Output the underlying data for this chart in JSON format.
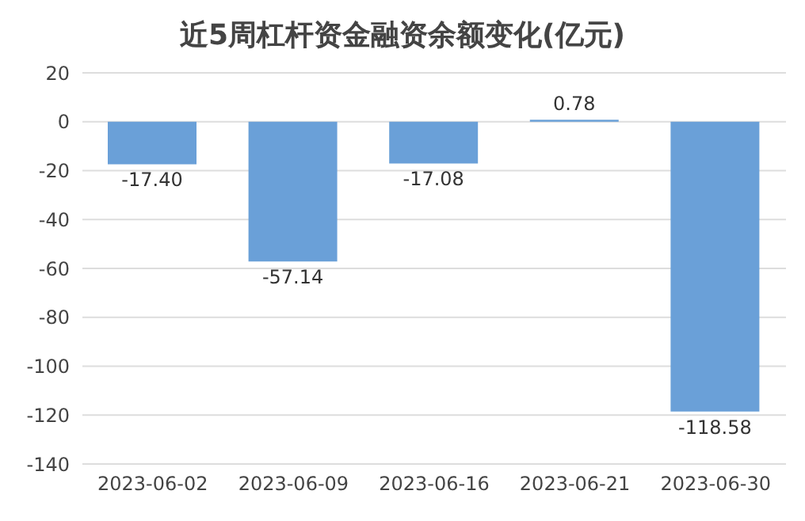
{
  "chart_data": {
    "type": "bar",
    "title": "近5周杠杆资金融资余额变化(亿元)",
    "categories": [
      "2023-06-02",
      "2023-06-09",
      "2023-06-16",
      "2023-06-21",
      "2023-06-30"
    ],
    "values": [
      -17.4,
      -57.14,
      -17.08,
      0.78,
      -118.58
    ],
    "value_labels": [
      "-17.40",
      "-57.14",
      "-17.08",
      "0.78",
      "-118.58"
    ],
    "color": "#6aa0d8",
    "ylim": [
      -140,
      20
    ],
    "yticks": [
      -140,
      -120,
      -100,
      -80,
      -60,
      -40,
      -20,
      0,
      20
    ],
    "grid": "y"
  }
}
